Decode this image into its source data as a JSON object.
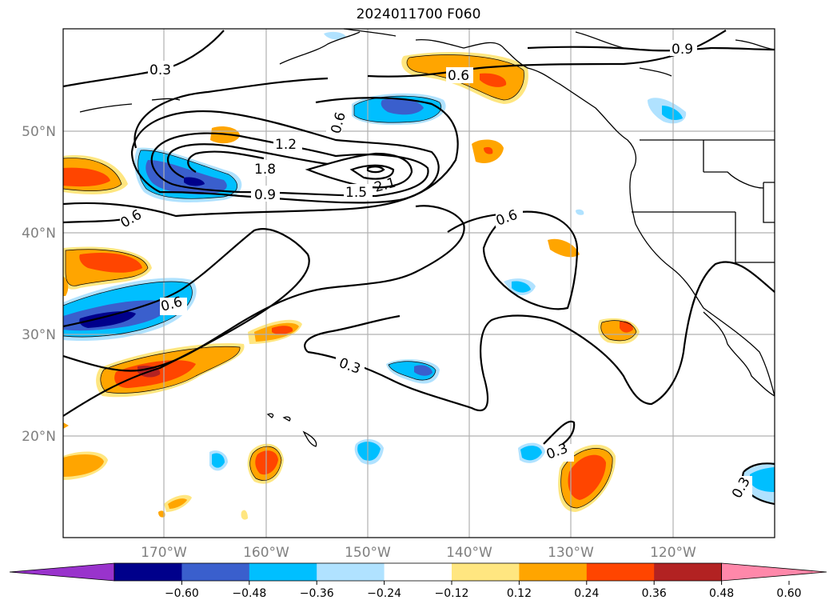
{
  "title": "2024011700 F060",
  "map": {
    "lat_labels": [
      "50°N",
      "40°N",
      "30°N",
      "20°N"
    ],
    "lon_labels": [
      "170°W",
      "160°W",
      "150°W",
      "140°W",
      "130°W",
      "120°W"
    ],
    "contour_labels": [
      "0.3",
      "0.6",
      "0.9",
      "1.2",
      "1.5",
      "1.8",
      "2.1",
      "0.6",
      "0.9",
      "0.6",
      "0.6",
      "0.3",
      "0.3",
      "0.3"
    ]
  },
  "colorbar": {
    "ticks": [
      "−0.60",
      "−0.48",
      "−0.36",
      "−0.24",
      "−0.12",
      "0.12",
      "0.24",
      "0.36",
      "0.48",
      "0.60"
    ],
    "colors": [
      "#9933cc",
      "#00008b",
      "#3a5fcd",
      "#00bfff",
      "#b0e2ff",
      "#ffffff",
      "#ffe680",
      "#ffa500",
      "#ff4500",
      "#b22222",
      "#ff88aa"
    ]
  }
}
